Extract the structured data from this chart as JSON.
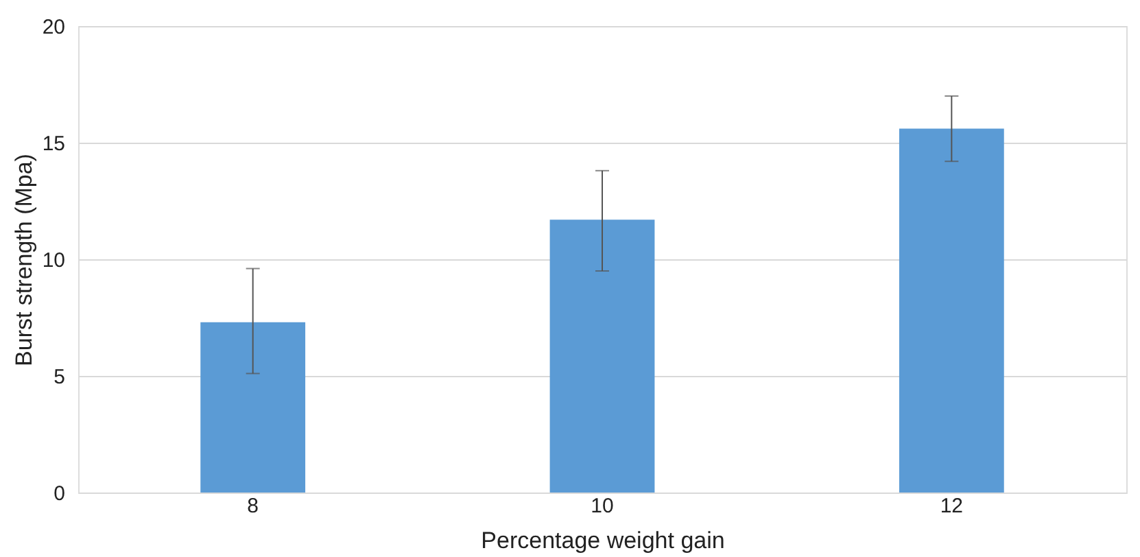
{
  "chart_data": {
    "type": "bar",
    "xlabel": "Percentage weight gain",
    "ylabel": "Burst strength (Mpa)",
    "categories": [
      "8",
      "10",
      "12"
    ],
    "values": [
      7.3,
      11.7,
      15.6
    ],
    "errors": [
      [
        5.1,
        9.6
      ],
      [
        9.5,
        13.8
      ],
      [
        14.2,
        17.0
      ]
    ],
    "color": "#5b9bd5",
    "ylim": [
      0,
      20
    ],
    "yticks": [
      0,
      5,
      10,
      15,
      20
    ],
    "grid": "y"
  }
}
